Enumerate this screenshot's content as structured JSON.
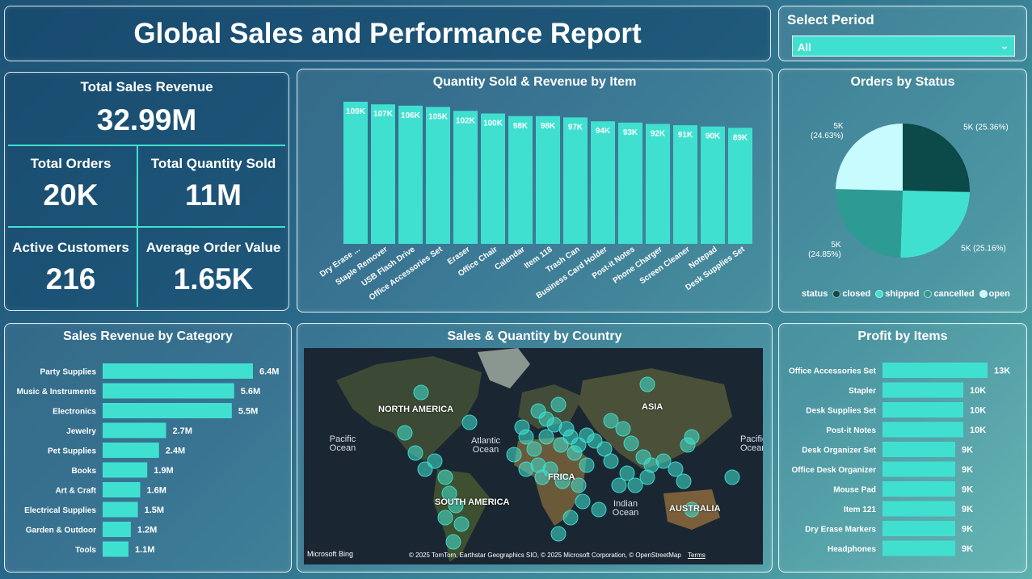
{
  "header": {
    "title": "Global Sales and Performance Report"
  },
  "period": {
    "label": "Select Period",
    "value": "All",
    "icon": "chevron-down-icon"
  },
  "kpis": {
    "revenue_label": "Total Sales Revenue",
    "revenue_value": "32.99M",
    "orders_label": "Total Orders",
    "orders_value": "20K",
    "qty_label": "Total Quantity Sold",
    "qty_value": "11M",
    "customers_label": "Active Customers",
    "customers_value": "216",
    "aov_label": "Average Order Value",
    "aov_value": "1.65K"
  },
  "colors": {
    "accent": "#40e0d0",
    "closed": "#0b4a48",
    "shipped": "#40e0d0",
    "cancelled": "#2e9a94",
    "open": "#c8fbfd"
  },
  "chart_data": [
    {
      "type": "bar",
      "title": "Quantity Sold & Revenue by Item",
      "categories": [
        "Dry Erase ...",
        "Staple Remover",
        "USB Flash Drive",
        "Office Accessories Set",
        "Eraser",
        "Office Chair",
        "Calendar",
        "Item 118",
        "Trash Can",
        "Business Card Holder",
        "Post-it Notes",
        "Phone Charger",
        "Screen Cleaner",
        "Notepad",
        "Desk Supplies Set"
      ],
      "values": [
        109,
        107,
        106,
        105,
        102,
        100,
        98,
        98,
        97,
        94,
        93,
        92,
        91,
        90,
        89
      ],
      "labels": [
        "109K",
        "107K",
        "106K",
        "105K",
        "102K",
        "100K",
        "98K",
        "98K",
        "97K",
        "94K",
        "93K",
        "92K",
        "91K",
        "90K",
        "89K"
      ]
    },
    {
      "type": "pie",
      "title": "Orders by Status",
      "legend_title": "status",
      "legend_position": "bottom",
      "categories": [
        "closed",
        "shipped",
        "cancelled",
        "open"
      ],
      "values": [
        25.36,
        25.16,
        24.85,
        24.63
      ],
      "labels": [
        "5K (25.36%)",
        "5K (25.16%)",
        "5K (24.85%)",
        "5K (24.63%)"
      ]
    },
    {
      "type": "bar",
      "orientation": "horizontal",
      "title": "Sales Revenue by Category",
      "categories": [
        "Party Supplies",
        "Music & Instruments",
        "Electronics",
        "Jewelry",
        "Pet Supplies",
        "Books",
        "Art & Craft",
        "Electrical Supplies",
        "Garden & Outdoor",
        "Tools"
      ],
      "values": [
        6.4,
        5.6,
        5.5,
        2.7,
        2.4,
        1.9,
        1.6,
        1.5,
        1.2,
        1.1
      ],
      "labels": [
        "6.4M",
        "5.6M",
        "5.5M",
        "2.7M",
        "2.4M",
        "1.9M",
        "1.6M",
        "1.5M",
        "1.2M",
        "1.1M"
      ]
    },
    {
      "type": "bar",
      "orientation": "horizontal",
      "title": "Profit by Items",
      "categories": [
        "Office Accessories Set",
        "Stapler",
        "Desk Supplies Set",
        "Post-it Notes",
        "Desk Organizer Set",
        "Office Desk Organizer",
        "Mouse Pad",
        "Item 121",
        "Dry Erase Markers",
        "Headphones"
      ],
      "values": [
        13,
        10,
        10,
        10,
        9,
        9,
        9,
        9,
        9,
        9
      ],
      "labels": [
        "13K",
        "10K",
        "10K",
        "10K",
        "9K",
        "9K",
        "9K",
        "9K",
        "9K",
        "9K"
      ]
    }
  ],
  "map": {
    "title": "Sales & Quantity by Country",
    "labels": {
      "na": "NORTH AMERICA",
      "sa": "SOUTH AMERICA",
      "asia": "ASIA",
      "au": "AUSTRALIA",
      "africa": "FRICA",
      "pacific": "Pacific Ocean",
      "pacific2": "Pacific Ocean",
      "atlantic": "Atlantic Ocean",
      "indian": "Indian Ocean"
    },
    "attribution": "© 2025 TomTom, Earthstar Geographics SIO, © 2025 Microsoft Corporation, © OpenStreetMap",
    "terms": "Terms",
    "logo": "Microsoft Bing"
  }
}
